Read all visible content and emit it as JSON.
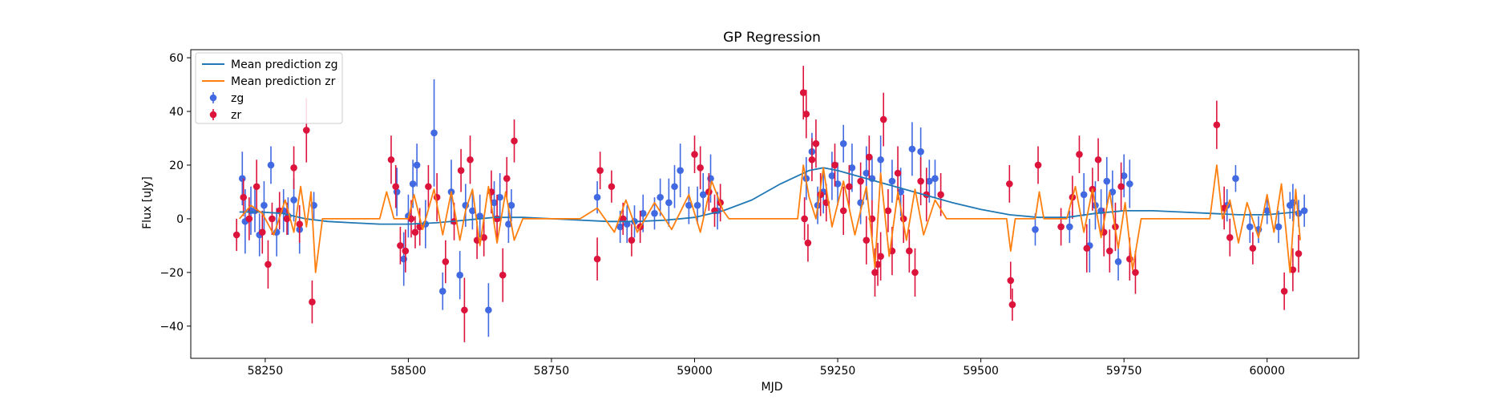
{
  "chart_data": {
    "type": "scatter",
    "title": "GP Regression",
    "xlabel": "MJD",
    "ylabel": "Flux [uJy]",
    "xlim": [
      58120,
      60160
    ],
    "ylim": [
      -52,
      63
    ],
    "xticks": [
      58250,
      58500,
      58750,
      59000,
      59250,
      59500,
      59750,
      60000
    ],
    "yticks": [
      -40,
      -20,
      0,
      20,
      40,
      60
    ],
    "grid": false,
    "legend": {
      "placement": "top-left",
      "entries": [
        {
          "label": "Mean prediction zg",
          "kind": "line",
          "color": "#1f77b4"
        },
        {
          "label": "Mean prediction zr",
          "kind": "line",
          "color": "#ff7f0e"
        },
        {
          "label": "zg",
          "kind": "errorbar",
          "color": "#4169e1"
        },
        {
          "label": "zr",
          "kind": "errorbar",
          "color": "#dc143c"
        }
      ]
    },
    "lines": [
      {
        "name": "Mean prediction zg",
        "color": "#1f77b4",
        "x": [
          58205,
          58240,
          58280,
          58320,
          58360,
          58400,
          58450,
          58500,
          58550,
          58600,
          58650,
          58700,
          58750,
          58800,
          58850,
          58900,
          58950,
          59000,
          59050,
          59100,
          59150,
          59200,
          59225,
          59250,
          59300,
          59350,
          59400,
          59450,
          59500,
          59550,
          59600,
          59650,
          59700,
          59750,
          59800,
          59850,
          59900,
          59950,
          60000,
          60050
        ],
        "y": [
          2.5,
          2.5,
          2,
          0,
          -1,
          -1.5,
          -2,
          -2,
          -1.5,
          -0.5,
          0.5,
          0.5,
          0,
          -0.5,
          -1,
          -1,
          -0.5,
          0.5,
          3,
          7,
          13,
          18,
          19,
          18,
          15,
          12,
          9,
          6,
          3.5,
          1.5,
          0.5,
          0.5,
          2,
          3,
          3,
          2.5,
          2,
          1.5,
          1.5,
          2.5
        ]
      },
      {
        "name": "Mean prediction zr",
        "color": "#ff7f0e",
        "x": [
          58205,
          58225,
          58245,
          58265,
          58285,
          58300,
          58312,
          58322,
          58330,
          58338,
          58350,
          58400,
          58450,
          58462,
          58475,
          58500,
          58510,
          58525,
          58545,
          58560,
          58575,
          58590,
          58600,
          58612,
          58625,
          58640,
          58655,
          58670,
          58685,
          58700,
          58800,
          58830,
          58860,
          58880,
          58900,
          58930,
          58960,
          58990,
          59010,
          59030,
          59050,
          59060,
          59180,
          59190,
          59200,
          59212,
          59225,
          59240,
          59260,
          59280,
          59300,
          59315,
          59325,
          59340,
          59355,
          59370,
          59385,
          59400,
          59420,
          59440,
          59500,
          59545,
          59552,
          59560,
          59595,
          59602,
          59610,
          59650,
          59665,
          59680,
          59695,
          59710,
          59725,
          59740,
          59752,
          59765,
          59780,
          59900,
          59912,
          59922,
          59935,
          59950,
          59965,
          59985,
          60000,
          60012,
          60025,
          60040,
          60050,
          60058
        ],
        "y": [
          0,
          5,
          2,
          -6,
          7,
          -5,
          12,
          -3,
          10,
          -20,
          0,
          0,
          0,
          10,
          0,
          0,
          9,
          -4,
          11,
          -6,
          10,
          -8,
          3,
          11,
          -10,
          12,
          -9,
          10,
          -8,
          0,
          0,
          4,
          -5,
          7,
          -5,
          6,
          -4,
          9,
          -5,
          14,
          3,
          0,
          0,
          20,
          8,
          0,
          19,
          -3,
          14,
          -6,
          12,
          -18,
          17,
          -14,
          10,
          -8,
          11,
          -6,
          7,
          0,
          0,
          0,
          -12,
          0,
          0,
          10,
          0,
          0,
          12,
          -5,
          11,
          -7,
          10,
          -11,
          6,
          -19,
          0,
          0,
          20,
          0,
          7,
          -9,
          6,
          -7,
          9,
          -5,
          13,
          -20,
          11,
          -8
        ]
      }
    ],
    "series": [
      {
        "name": "zg",
        "color": "#4169e1",
        "x": [
          58210,
          58215,
          58225,
          58232,
          58240,
          58248,
          58260,
          58270,
          58282,
          58290,
          58300,
          58310,
          58335,
          58480,
          58492,
          58500,
          58508,
          58515,
          58530,
          58545,
          58560,
          58575,
          58590,
          58600,
          58612,
          58625,
          58640,
          58650,
          58660,
          58675,
          58680,
          58830,
          58870,
          58882,
          58895,
          58910,
          58930,
          58940,
          58955,
          58965,
          58975,
          58990,
          59005,
          59015,
          59028,
          59040,
          59195,
          59205,
          59215,
          59225,
          59240,
          59250,
          59260,
          59275,
          59290,
          59300,
          59310,
          59325,
          59345,
          59360,
          59380,
          59395,
          59410,
          59420,
          59595,
          59655,
          59680,
          59690,
          59700,
          59710,
          59720,
          59730,
          59740,
          59750,
          59760,
          59930,
          59945,
          59970,
          59985,
          60000,
          60020,
          60040,
          60045,
          60055,
          60065
        ],
        "y": [
          15,
          -1,
          3,
          3,
          -6,
          5,
          20,
          -5,
          3,
          1,
          7,
          -4,
          5,
          10,
          -15,
          1,
          13,
          20,
          -2,
          32,
          -27,
          10,
          -21,
          5,
          3,
          1,
          -34,
          6,
          8,
          -2,
          5,
          8,
          -3,
          -2,
          -1,
          2,
          2,
          8,
          6,
          12,
          18,
          5,
          5,
          9,
          15,
          3,
          15,
          25,
          5,
          10,
          16,
          13,
          28,
          19,
          6,
          17,
          15,
          22,
          14,
          10,
          26,
          25,
          14,
          15,
          -4,
          -3,
          9,
          -10,
          5,
          3,
          14,
          10,
          -16,
          16,
          13,
          5,
          15,
          -3,
          -4,
          3,
          -3,
          5,
          6,
          2,
          3
        ],
        "yerr": [
          10,
          12,
          9,
          8,
          8,
          9,
          7,
          9,
          8,
          7,
          8,
          9,
          5,
          9,
          10,
          8,
          9,
          8,
          9,
          20,
          7,
          12,
          9,
          8,
          7,
          8,
          10,
          8,
          9,
          7,
          6,
          6,
          6,
          7,
          6,
          7,
          6,
          7,
          9,
          8,
          10,
          7,
          7,
          8,
          9,
          7,
          8,
          7,
          7,
          8,
          9,
          8,
          7,
          9,
          8,
          10,
          8,
          9,
          8,
          9,
          10,
          9,
          8,
          7,
          6,
          6,
          8,
          10,
          9,
          8,
          9,
          8,
          7,
          8,
          9,
          6,
          5,
          6,
          5,
          5,
          6,
          5,
          7,
          5,
          6
        ]
      },
      {
        "name": "zr",
        "color": "#dc143c",
        "x": [
          58200,
          58212,
          58222,
          58235,
          58245,
          58255,
          58262,
          58275,
          58288,
          58300,
          58310,
          58322,
          58332,
          58470,
          58478,
          58486,
          58495,
          58505,
          58512,
          58520,
          58535,
          58550,
          58565,
          58580,
          58592,
          58598,
          58608,
          58620,
          58632,
          58645,
          58655,
          58665,
          58672,
          58685,
          58830,
          58835,
          58855,
          58875,
          58890,
          58905,
          59000,
          59010,
          59025,
          59035,
          59045,
          59190,
          59192,
          59195,
          59198,
          59205,
          59212,
          59220,
          59230,
          59245,
          59260,
          59270,
          59290,
          59300,
          59305,
          59310,
          59315,
          59320,
          59325,
          59330,
          59338,
          59345,
          59355,
          59365,
          59375,
          59385,
          59395,
          59405,
          59430,
          59550,
          59552,
          59555,
          59600,
          59640,
          59660,
          59672,
          59685,
          59695,
          59705,
          59715,
          59725,
          59735,
          59745,
          59760,
          59770,
          59912,
          59925,
          59935,
          59975,
          60030,
          60045,
          60055
        ],
        "y": [
          -6,
          8,
          0,
          12,
          -5,
          -17,
          0,
          3,
          0,
          19,
          -2,
          33,
          -31,
          22,
          12,
          -10,
          -12,
          0,
          -5,
          -3,
          12,
          8,
          -16,
          -1,
          18,
          -34,
          22,
          -8,
          -7,
          10,
          0,
          -21,
          15,
          29,
          -15,
          18,
          12,
          0,
          -8,
          -3,
          24,
          19,
          10,
          3,
          6,
          47,
          0,
          39,
          -9,
          22,
          28,
          9,
          6,
          20,
          3,
          12,
          14,
          -8,
          23,
          0,
          -20,
          -17,
          -14,
          37,
          3,
          -12,
          17,
          0,
          -12,
          -20,
          14,
          9,
          9,
          13,
          -23,
          -32,
          20,
          -3,
          8,
          24,
          -11,
          11,
          22,
          -5,
          -12,
          -3,
          12,
          -15,
          -20,
          35,
          4,
          -7,
          -11,
          -27,
          -19,
          -13
        ],
        "yerr": [
          6,
          7,
          8,
          10,
          8,
          9,
          6,
          7,
          6,
          8,
          7,
          12,
          8,
          9,
          8,
          7,
          8,
          7,
          6,
          7,
          8,
          9,
          8,
          7,
          8,
          12,
          9,
          7,
          7,
          8,
          9,
          10,
          8,
          8,
          8,
          7,
          6,
          6,
          6,
          6,
          7,
          8,
          7,
          6,
          7,
          10,
          8,
          9,
          7,
          8,
          9,
          8,
          7,
          8,
          9,
          8,
          7,
          9,
          8,
          7,
          9,
          8,
          9,
          10,
          8,
          9,
          10,
          9,
          8,
          9,
          9,
          10,
          8,
          7,
          7,
          6,
          7,
          7,
          8,
          7,
          9,
          8,
          8,
          9,
          8,
          9,
          9,
          8,
          8,
          9,
          8,
          7,
          6,
          7,
          8,
          7
        ]
      }
    ]
  }
}
